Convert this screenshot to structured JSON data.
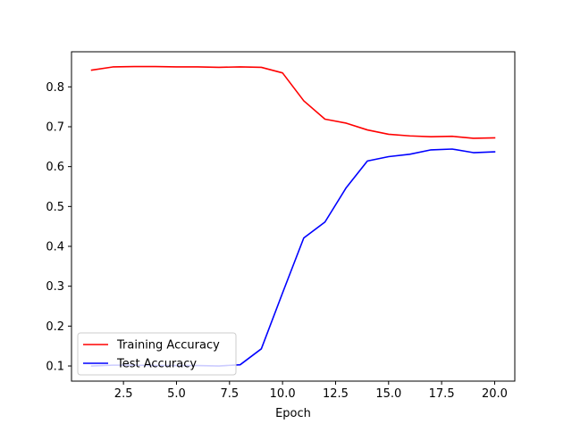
{
  "chart_data": {
    "type": "line",
    "title": "",
    "xlabel": "Epoch",
    "ylabel": "",
    "xlim": [
      0.05,
      20.95
    ],
    "ylim": [
      0.062,
      0.888
    ],
    "xticks": [
      2.5,
      5.0,
      7.5,
      10.0,
      12.5,
      15.0,
      17.5,
      20.0
    ],
    "xtick_labels": [
      "2.5",
      "5.0",
      "7.5",
      "10.0",
      "12.5",
      "15.0",
      "17.5",
      "20.0"
    ],
    "yticks": [
      0.1,
      0.2,
      0.3,
      0.4,
      0.5,
      0.6,
      0.7,
      0.8
    ],
    "ytick_labels": [
      "0.1",
      "0.2",
      "0.3",
      "0.4",
      "0.5",
      "0.6",
      "0.7",
      "0.8"
    ],
    "grid": false,
    "legend_position": "lower-left",
    "x": [
      1,
      2,
      3,
      4,
      5,
      6,
      7,
      8,
      9,
      10,
      11,
      12,
      13,
      14,
      15,
      16,
      17,
      18,
      19,
      20
    ],
    "series": [
      {
        "name": "Training Accuracy",
        "color": "#ff0000",
        "values": [
          0.842,
          0.85,
          0.851,
          0.851,
          0.85,
          0.85,
          0.849,
          0.85,
          0.849,
          0.835,
          0.765,
          0.719,
          0.709,
          0.692,
          0.681,
          0.677,
          0.675,
          0.676,
          0.671,
          0.672
        ]
      },
      {
        "name": "Test Accuracy",
        "color": "#0000ff",
        "values": [
          0.1,
          0.102,
          0.102,
          0.101,
          0.101,
          0.101,
          0.1,
          0.103,
          0.143,
          0.283,
          0.421,
          0.461,
          0.547,
          0.614,
          0.625,
          0.631,
          0.642,
          0.644,
          0.635,
          0.637
        ]
      }
    ]
  }
}
